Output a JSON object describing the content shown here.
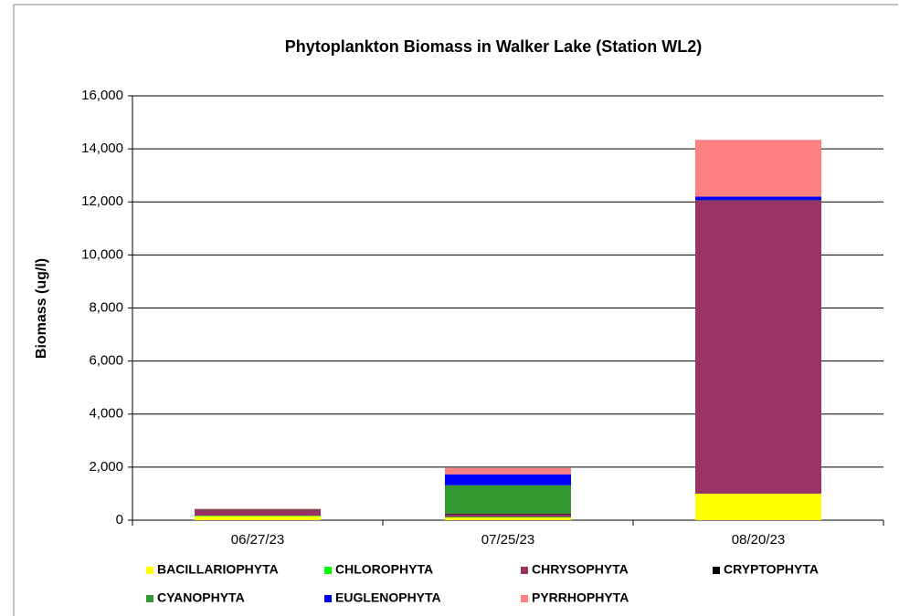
{
  "chart_data": {
    "type": "stacked_bar",
    "title": "Phytoplankton Biomass in Walker Lake (Station WL2)",
    "y_label": "Biomass (ug/l)",
    "categories": [
      "06/27/23",
      "07/25/23",
      "08/20/23"
    ],
    "series": [
      {
        "name": "BACILLARIOPHYTA",
        "color": "#ffff00",
        "values": [
          150,
          100,
          1000
        ]
      },
      {
        "name": "CHLOROPHYTA",
        "color": "#00ff00",
        "values": [
          20,
          20,
          0
        ]
      },
      {
        "name": "CHRYSOPHYTA",
        "color": "#993366",
        "values": [
          200,
          100,
          11050
        ]
      },
      {
        "name": "CRYPTOPHYTA",
        "color": "#000000",
        "values": [
          30,
          30,
          20
        ]
      },
      {
        "name": "CYANOPHYTA",
        "color": "#339933",
        "values": [
          0,
          1070,
          0
        ]
      },
      {
        "name": "EUGLENOPHYTA",
        "color": "#0000ff",
        "values": [
          0,
          410,
          130
        ]
      },
      {
        "name": "PYRRHOPHYTA",
        "color": "#ff8080",
        "values": [
          30,
          240,
          2140
        ]
      }
    ],
    "ylim": [
      0,
      16000
    ],
    "yticks": [
      0,
      {
        "value": 2000,
        "label": "2,000"
      },
      {
        "value": 4000,
        "label": "4,000"
      },
      {
        "value": 6000,
        "label": "6,000"
      },
      {
        "value": 8000,
        "label": "8,000"
      },
      {
        "value": 10000,
        "label": "10,000"
      },
      {
        "value": 12000,
        "label": "12,000"
      },
      {
        "value": 14000,
        "label": "14,000"
      },
      {
        "value": 16000,
        "label": "16,000"
      }
    ],
    "grid": true
  }
}
